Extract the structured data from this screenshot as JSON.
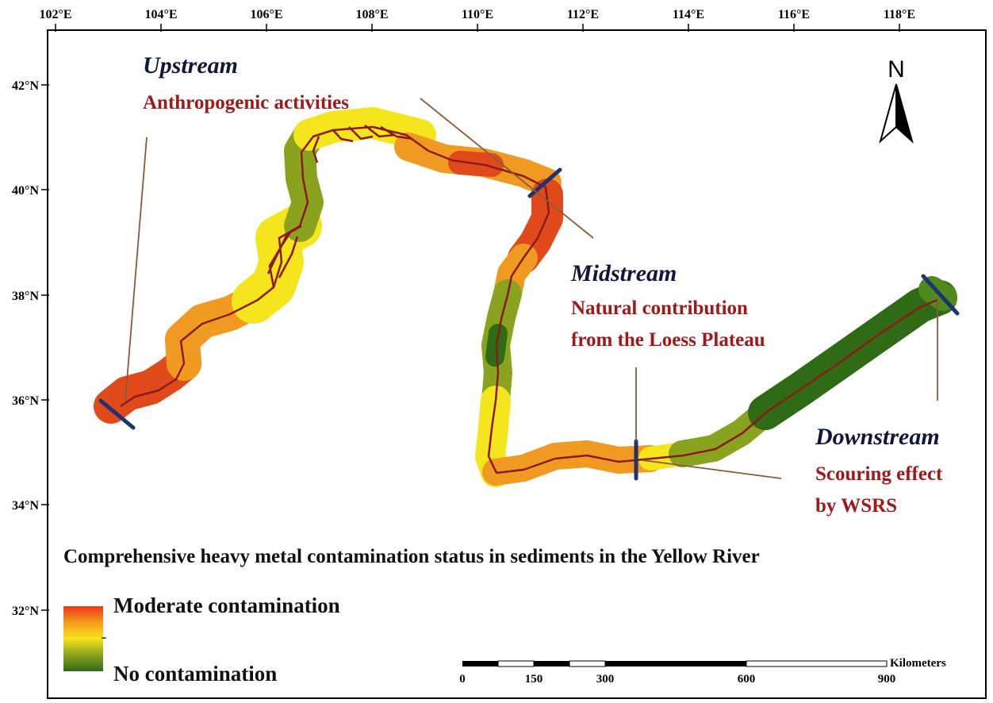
{
  "axes": {
    "lon_ticks": [
      "102°E",
      "104°E",
      "106°E",
      "108°E",
      "110°E",
      "112°E",
      "114°E",
      "116°E",
      "118°E"
    ],
    "lat_ticks": [
      "42°N",
      "40°N",
      "38°N",
      "36°N",
      "34°N",
      "32°N"
    ]
  },
  "sections": {
    "upstream": {
      "title": "Upstream",
      "note": "Anthropogenic activities"
    },
    "midstream": {
      "title": "Midstream",
      "note_line1": "Natural contribution",
      "note_line2": "from the Loess Plateau"
    },
    "downstream": {
      "title": "Downstream",
      "note_line1": "Scouring effect",
      "note_line2": "by WSRS"
    }
  },
  "caption": "Comprehensive heavy metal contamination status in sediments in the Yellow River",
  "legend": {
    "high_label": "Moderate contamination",
    "low_label": "No contamination",
    "colors": [
      "#e8381b",
      "#f59a1e",
      "#f7e21b",
      "#8aa21e",
      "#2f6a15"
    ]
  },
  "north_arrow": {
    "label": "N"
  },
  "scale_bar": {
    "unit": "Kilometers",
    "ticks": [
      "0",
      "150",
      "300",
      "600",
      "900"
    ]
  },
  "colors": {
    "moderate": "#e04a1a",
    "orange": "#f19a22",
    "yellow": "#f5e51c",
    "light_green": "#8aa31f",
    "dark_green": "#2e6b14",
    "river_line": "#8b1a1a",
    "boundary_line": "#1f3370",
    "callout_line": "#8a5a3a"
  }
}
